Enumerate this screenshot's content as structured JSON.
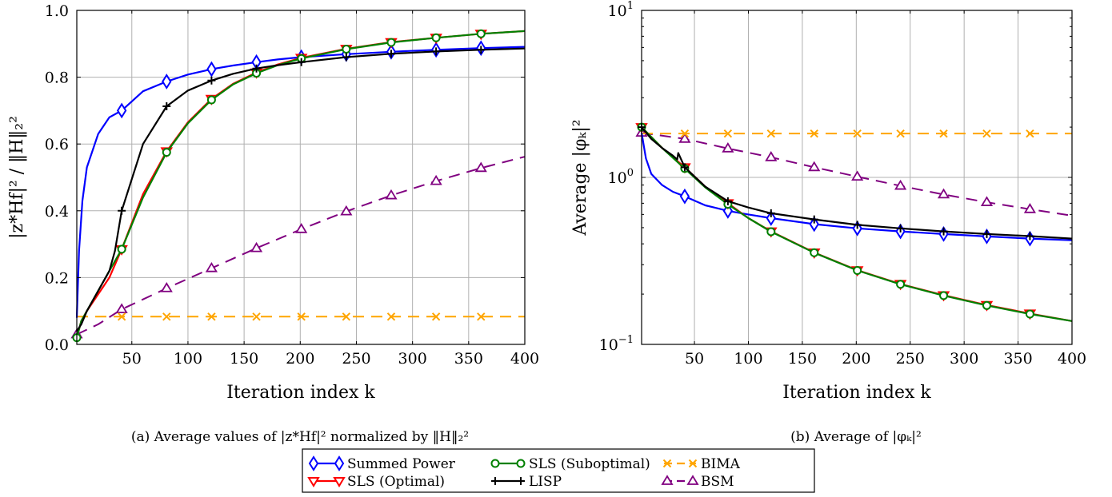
{
  "chart_data": [
    {
      "type": "line",
      "title": "",
      "caption_prefix": "(a)",
      "caption": "Average values of |z*Hf|² normalized by ‖H‖₂²",
      "xlabel": "Iteration index k",
      "ylabel": "|z*Hf|² / ‖H‖₂²",
      "xlim": [
        1,
        400
      ],
      "ylim": [
        0,
        1
      ],
      "yscale": "linear",
      "xticks": [
        50,
        100,
        150,
        200,
        250,
        300,
        350,
        400
      ],
      "xtick_labels": [
        "50",
        "100",
        "150",
        "200",
        "250",
        "300",
        "350",
        "400"
      ],
      "yticks": [
        0,
        0.2,
        0.4,
        0.6,
        0.8,
        1.0
      ],
      "ytick_labels": [
        "0.0",
        "0.2",
        "0.4",
        "0.6",
        "0.8",
        "1.0"
      ],
      "grid": true,
      "series": [
        {
          "name": "Summed Power",
          "style": "blue",
          "x": [
            1,
            3,
            6,
            10,
            20,
            30,
            41,
            60,
            81,
            100,
            121,
            140,
            161,
            180,
            201,
            241,
            281,
            321,
            361,
            400
          ],
          "y": [
            0.08,
            0.28,
            0.43,
            0.53,
            0.63,
            0.68,
            0.7,
            0.758,
            0.787,
            0.808,
            0.824,
            0.835,
            0.845,
            0.853,
            0.86,
            0.869,
            0.876,
            0.882,
            0.887,
            0.891
          ],
          "markers_x": [
            41,
            81,
            121,
            161,
            201,
            241,
            281,
            321,
            361
          ],
          "markers_y": [
            0.7,
            0.787,
            0.824,
            0.845,
            0.86,
            0.869,
            0.876,
            0.882,
            0.887
          ]
        },
        {
          "name": "SLS (Optimal)",
          "style": "red",
          "x": [
            1,
            5,
            10,
            20,
            30,
            41,
            60,
            81,
            100,
            121,
            140,
            161,
            180,
            201,
            241,
            281,
            321,
            361,
            400
          ],
          "y": [
            0.02,
            0.07,
            0.1,
            0.15,
            0.2,
            0.285,
            0.45,
            0.578,
            0.665,
            0.735,
            0.78,
            0.814,
            0.838,
            0.858,
            0.885,
            0.905,
            0.918,
            0.93,
            0.938
          ],
          "markers_x": [
            41,
            81,
            121,
            161,
            201,
            241,
            281,
            321,
            361
          ],
          "markers_y": [
            0.285,
            0.578,
            0.735,
            0.814,
            0.858,
            0.885,
            0.905,
            0.918,
            0.93
          ]
        },
        {
          "name": "SLS (Suboptimal)",
          "style": "green",
          "x": [
            1,
            5,
            10,
            20,
            30,
            41,
            60,
            81,
            100,
            121,
            140,
            161,
            180,
            201,
            241,
            281,
            321,
            361,
            400
          ],
          "y": [
            0.02,
            0.07,
            0.1,
            0.16,
            0.22,
            0.285,
            0.44,
            0.575,
            0.662,
            0.732,
            0.778,
            0.812,
            0.836,
            0.856,
            0.884,
            0.904,
            0.918,
            0.93,
            0.938
          ],
          "markers_x": [
            1,
            41,
            81,
            121,
            161,
            201,
            241,
            281,
            321,
            361
          ],
          "markers_y": [
            0.02,
            0.285,
            0.575,
            0.732,
            0.812,
            0.856,
            0.884,
            0.904,
            0.918,
            0.93
          ]
        },
        {
          "name": "LISP",
          "style": "black",
          "x": [
            1,
            5,
            10,
            20,
            30,
            35,
            41,
            60,
            81,
            100,
            121,
            140,
            161,
            180,
            201,
            241,
            281,
            321,
            361,
            400
          ],
          "y": [
            0.04,
            0.06,
            0.1,
            0.16,
            0.22,
            0.28,
            0.4,
            0.6,
            0.713,
            0.76,
            0.79,
            0.81,
            0.826,
            0.836,
            0.845,
            0.86,
            0.87,
            0.877,
            0.882,
            0.886
          ],
          "markers_x": [
            41,
            81,
            121,
            161,
            201,
            241,
            281,
            321,
            361
          ],
          "markers_y": [
            0.4,
            0.713,
            0.79,
            0.826,
            0.845,
            0.86,
            0.87,
            0.877,
            0.882
          ]
        },
        {
          "name": "BIMA",
          "style": "orange",
          "x": [
            1,
            400
          ],
          "y": [
            0.083,
            0.083
          ],
          "markers_x": [
            41,
            81,
            121,
            161,
            201,
            241,
            281,
            321,
            361
          ],
          "markers_y": [
            0.083,
            0.083,
            0.083,
            0.083,
            0.083,
            0.083,
            0.083,
            0.083,
            0.083
          ]
        },
        {
          "name": "BSM",
          "style": "purple",
          "x": [
            1,
            20,
            41,
            81,
            121,
            161,
            201,
            241,
            281,
            321,
            361,
            400
          ],
          "y": [
            0.03,
            0.06,
            0.105,
            0.168,
            0.228,
            0.288,
            0.345,
            0.398,
            0.446,
            0.489,
            0.528,
            0.562
          ],
          "markers_x": [
            1,
            41,
            81,
            121,
            161,
            201,
            241,
            281,
            321,
            361
          ],
          "markers_y": [
            0.03,
            0.105,
            0.168,
            0.228,
            0.288,
            0.345,
            0.398,
            0.446,
            0.489,
            0.528
          ]
        }
      ]
    },
    {
      "type": "line",
      "title": "",
      "caption_prefix": "(b)",
      "caption": "Average of |φₖ|²",
      "xlabel": "Iteration index k",
      "ylabel": "Average |φₖ|²",
      "xlim": [
        1,
        400
      ],
      "ylim": [
        0.1,
        10
      ],
      "yscale": "log",
      "xticks": [
        50,
        100,
        150,
        200,
        250,
        300,
        350,
        400
      ],
      "xtick_labels": [
        "50",
        "100",
        "150",
        "200",
        "250",
        "300",
        "350",
        "400"
      ],
      "yticks": [
        0.1,
        1,
        10
      ],
      "ytick_labels": [
        {
          "base": "10",
          "exp": "−1"
        },
        {
          "base": "10",
          "exp": "0"
        },
        {
          "base": "10",
          "exp": "1"
        }
      ],
      "grid": true,
      "series": [
        {
          "name": "Summed Power",
          "style": "blue",
          "x": [
            1,
            5,
            10,
            20,
            30,
            41,
            60,
            81,
            100,
            121,
            161,
            201,
            241,
            281,
            321,
            361,
            400
          ],
          "y": [
            1.85,
            1.3,
            1.05,
            0.9,
            0.82,
            0.77,
            0.68,
            0.63,
            0.6,
            0.57,
            0.525,
            0.495,
            0.475,
            0.458,
            0.443,
            0.43,
            0.42
          ],
          "markers_x": [
            41,
            81,
            121,
            161,
            201,
            241,
            281,
            321,
            361
          ],
          "markers_y": [
            0.77,
            0.63,
            0.57,
            0.525,
            0.495,
            0.475,
            0.458,
            0.443,
            0.43
          ]
        },
        {
          "name": "SLS (Optimal)",
          "style": "red",
          "x": [
            1,
            20,
            41,
            60,
            81,
            100,
            121,
            161,
            201,
            241,
            281,
            321,
            361,
            400
          ],
          "y": [
            2.0,
            1.5,
            1.15,
            0.88,
            0.7,
            0.57,
            0.475,
            0.355,
            0.278,
            0.23,
            0.197,
            0.172,
            0.153,
            0.138
          ],
          "markers_x": [
            1,
            41,
            81,
            121,
            161,
            201,
            241,
            281,
            321,
            361
          ],
          "markers_y": [
            2.0,
            1.15,
            0.7,
            0.475,
            0.355,
            0.278,
            0.23,
            0.197,
            0.172,
            0.153
          ]
        },
        {
          "name": "SLS (Suboptimal)",
          "style": "green",
          "x": [
            1,
            20,
            41,
            60,
            81,
            100,
            121,
            161,
            201,
            241,
            281,
            321,
            361,
            400
          ],
          "y": [
            2.0,
            1.5,
            1.13,
            0.87,
            0.69,
            0.57,
            0.473,
            0.354,
            0.277,
            0.229,
            0.196,
            0.171,
            0.152,
            0.138
          ],
          "markers_x": [
            1,
            41,
            81,
            121,
            161,
            201,
            241,
            281,
            321,
            361
          ],
          "markers_y": [
            2.0,
            1.13,
            0.69,
            0.473,
            0.354,
            0.277,
            0.229,
            0.196,
            0.171,
            0.152
          ]
        },
        {
          "name": "LISP",
          "style": "black",
          "x": [
            1,
            10,
            20,
            30,
            34,
            35,
            41,
            60,
            81,
            100,
            121,
            161,
            201,
            241,
            281,
            321,
            361,
            400
          ],
          "y": [
            2.0,
            1.7,
            1.5,
            1.35,
            1.28,
            1.4,
            1.15,
            0.88,
            0.72,
            0.66,
            0.61,
            0.56,
            0.52,
            0.495,
            0.475,
            0.458,
            0.445,
            0.43
          ],
          "markers_x": [
            1,
            41,
            81,
            121,
            161,
            201,
            241,
            281,
            321,
            361
          ],
          "markers_y": [
            2.0,
            1.15,
            0.72,
            0.61,
            0.56,
            0.52,
            0.495,
            0.475,
            0.458,
            0.445
          ]
        },
        {
          "name": "BIMA",
          "style": "orange",
          "x": [
            1,
            400
          ],
          "y": [
            1.83,
            1.83
          ],
          "markers_x": [
            41,
            81,
            121,
            161,
            201,
            241,
            281,
            321,
            361
          ],
          "markers_y": [
            1.83,
            1.83,
            1.83,
            1.83,
            1.83,
            1.83,
            1.83,
            1.83,
            1.83
          ]
        },
        {
          "name": "BSM",
          "style": "purple",
          "x": [
            1,
            41,
            81,
            121,
            161,
            201,
            241,
            281,
            321,
            361,
            400
          ],
          "y": [
            1.85,
            1.7,
            1.49,
            1.32,
            1.15,
            1.01,
            0.89,
            0.79,
            0.71,
            0.645,
            0.59
          ],
          "markers_x": [
            1,
            41,
            81,
            121,
            161,
            201,
            241,
            281,
            321,
            361
          ],
          "markers_y": [
            1.85,
            1.7,
            1.49,
            1.32,
            1.15,
            1.01,
            0.89,
            0.79,
            0.71,
            0.645
          ]
        }
      ]
    }
  ],
  "styles": {
    "blue": {
      "color": "#0000ff",
      "marker": "diamond",
      "dash": ""
    },
    "red": {
      "color": "#ff0000",
      "marker": "triangle-down",
      "dash": ""
    },
    "green": {
      "color": "#008000",
      "marker": "circle",
      "dash": ""
    },
    "black": {
      "color": "#000000",
      "marker": "plus",
      "dash": ""
    },
    "orange": {
      "color": "#ffa500",
      "marker": "x",
      "dash": "14,9"
    },
    "purple": {
      "color": "#800080",
      "marker": "triangle-up",
      "dash": "14,9"
    }
  },
  "legend": {
    "placement": "bottom-center",
    "entries": [
      {
        "label": "Summed Power",
        "style": "blue"
      },
      {
        "label": "SLS (Suboptimal)",
        "style": "green"
      },
      {
        "label": "BIMA",
        "style": "orange"
      },
      {
        "label": "SLS (Optimal)",
        "style": "red"
      },
      {
        "label": "LISP",
        "style": "black"
      },
      {
        "label": "BSM",
        "style": "purple"
      }
    ]
  }
}
